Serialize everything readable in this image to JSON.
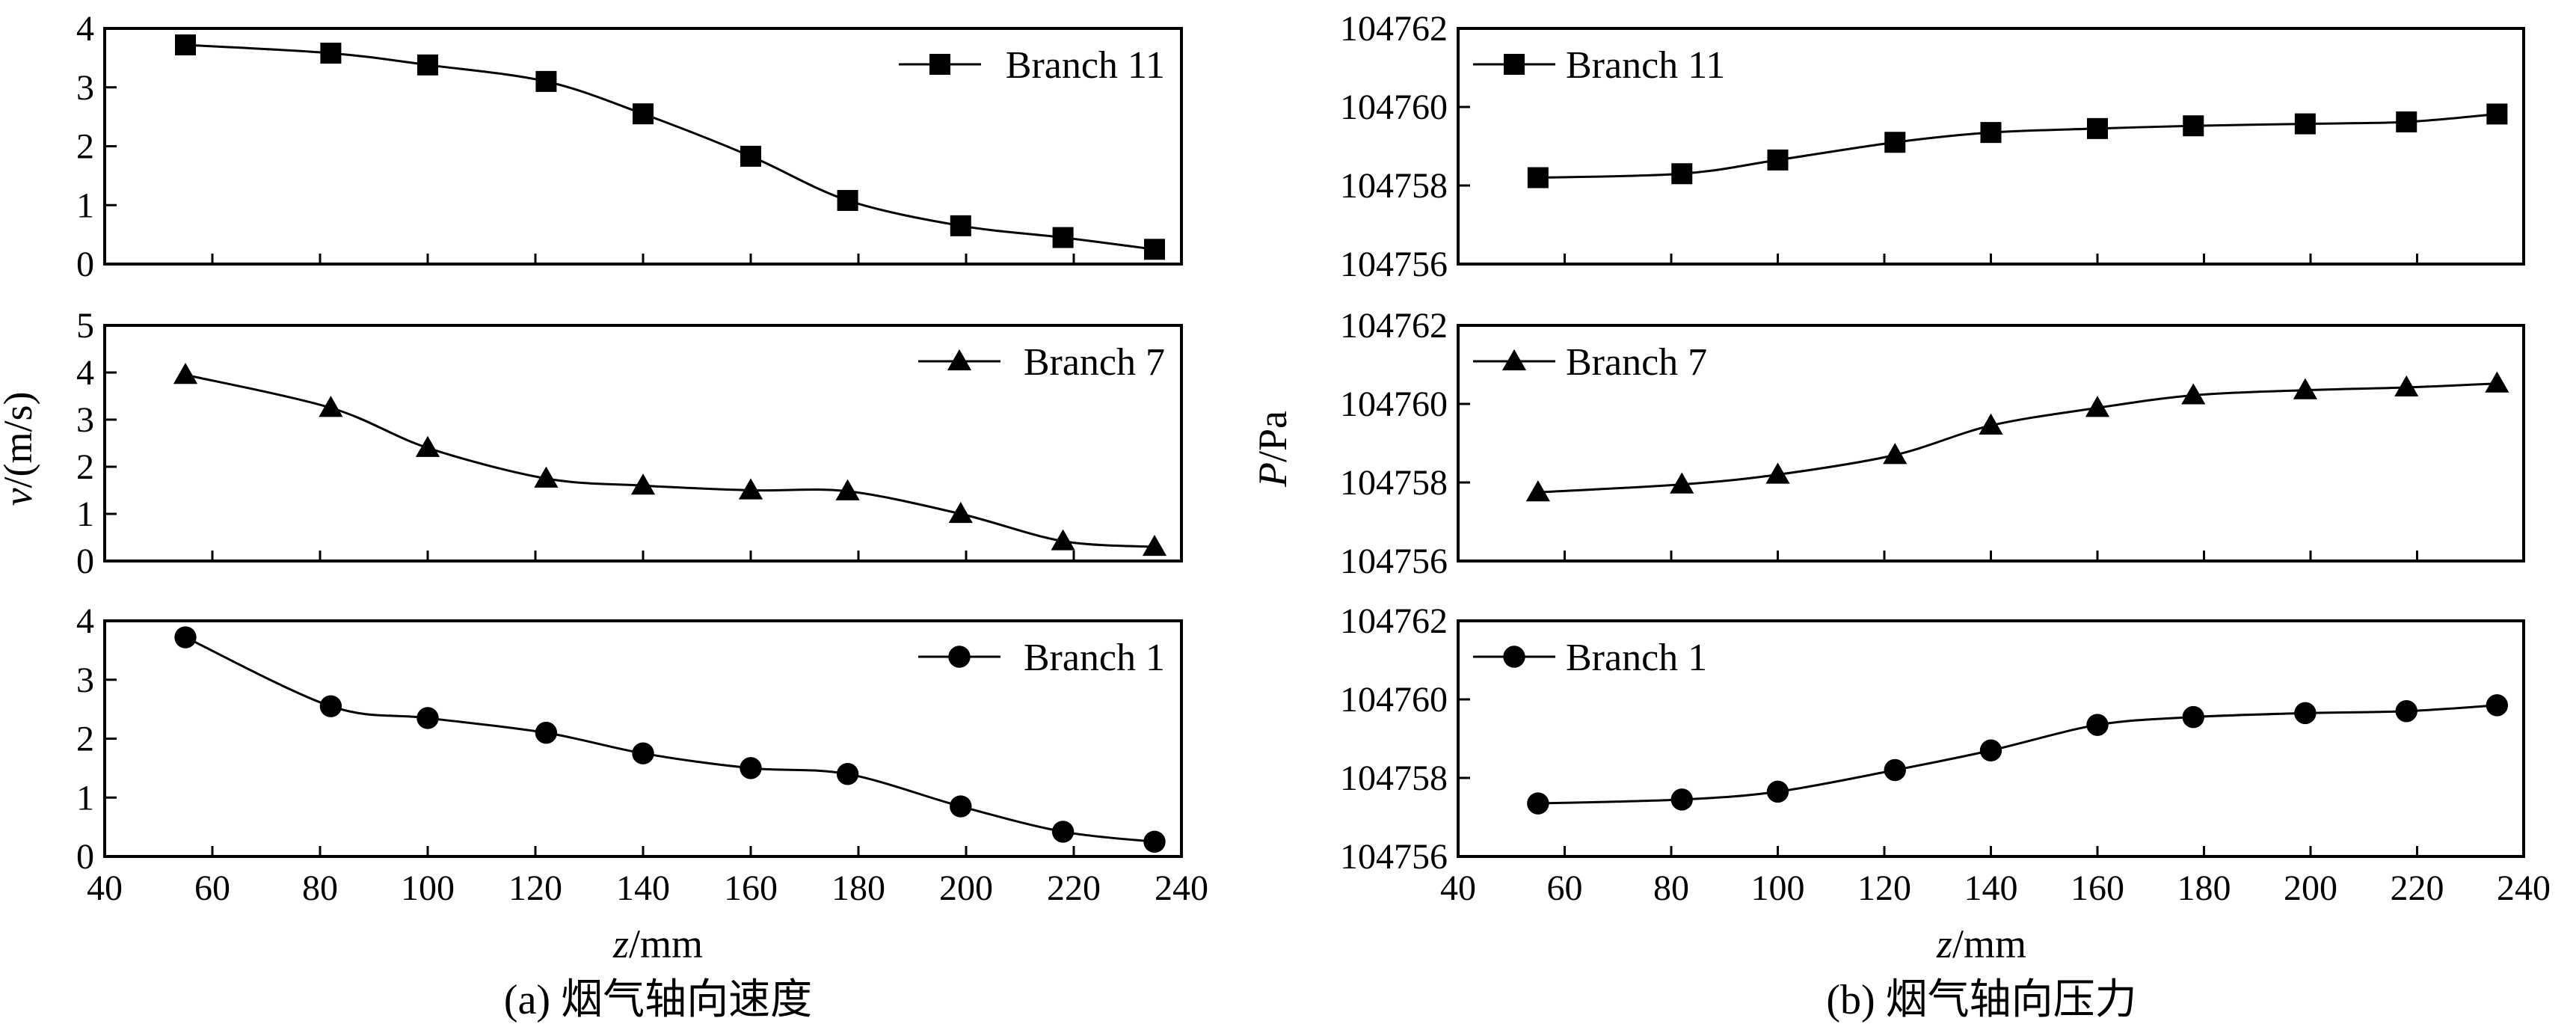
{
  "colors": {
    "line": "#000000",
    "marker": "#000000",
    "background": "#ffffff"
  },
  "panel_a": {
    "caption": "(a) 烟气轴向速度",
    "xlabel_italic": "z",
    "xlabel_unit": "/mm",
    "ylabel_italic": "v",
    "ylabel_unit": "/(m/s)"
  },
  "panel_b": {
    "caption": "(b) 烟气轴向压力",
    "xlabel_italic": "z",
    "xlabel_unit": "/mm",
    "ylabel_italic": "P",
    "ylabel_unit": "/Pa"
  },
  "chart_data": [
    {
      "type": "line",
      "panel": "a-top",
      "xlim": [
        40,
        240
      ],
      "ylim": [
        0,
        4
      ],
      "xticks": [
        40,
        60,
        80,
        100,
        120,
        140,
        160,
        180,
        200,
        220,
        240
      ],
      "yticks": [
        0,
        1,
        2,
        3,
        4
      ],
      "show_x_tick_labels": false,
      "legend_position": "top-right",
      "series": [
        {
          "name": "Branch 11",
          "marker": "square",
          "x": [
            55,
            82,
            100,
            122,
            140,
            160,
            178,
            199,
            218,
            235
          ],
          "y": [
            3.72,
            3.58,
            3.38,
            3.1,
            2.55,
            1.83,
            1.08,
            0.65,
            0.45,
            0.25
          ]
        }
      ]
    },
    {
      "type": "line",
      "panel": "a-middle",
      "xlim": [
        40,
        240
      ],
      "ylim": [
        0,
        5
      ],
      "xticks": [
        40,
        60,
        80,
        100,
        120,
        140,
        160,
        180,
        200,
        220,
        240
      ],
      "yticks": [
        0,
        1,
        2,
        3,
        4,
        5
      ],
      "show_x_tick_labels": false,
      "legend_position": "top-right",
      "series": [
        {
          "name": "Branch 7",
          "marker": "triangle",
          "x": [
            55,
            82,
            100,
            122,
            140,
            160,
            178,
            199,
            218,
            235
          ],
          "y": [
            3.95,
            3.25,
            2.4,
            1.75,
            1.6,
            1.5,
            1.48,
            1.0,
            0.42,
            0.3
          ]
        }
      ]
    },
    {
      "type": "line",
      "panel": "a-bottom",
      "xlim": [
        40,
        240
      ],
      "ylim": [
        0,
        4
      ],
      "xticks": [
        40,
        60,
        80,
        100,
        120,
        140,
        160,
        180,
        200,
        220,
        240
      ],
      "yticks": [
        0,
        1,
        2,
        3,
        4
      ],
      "show_x_tick_labels": true,
      "legend_position": "top-right",
      "series": [
        {
          "name": "Branch 1",
          "marker": "circle",
          "x": [
            55,
            82,
            100,
            122,
            140,
            160,
            178,
            199,
            218,
            235
          ],
          "y": [
            3.72,
            2.55,
            2.35,
            2.1,
            1.75,
            1.5,
            1.4,
            0.85,
            0.42,
            0.25
          ]
        }
      ]
    },
    {
      "type": "line",
      "panel": "b-top",
      "xlim": [
        40,
        240
      ],
      "ylim": [
        104756,
        104762
      ],
      "xticks": [
        40,
        60,
        80,
        100,
        120,
        140,
        160,
        180,
        200,
        220,
        240
      ],
      "yticks": [
        104756,
        104758,
        104760,
        104762
      ],
      "show_x_tick_labels": false,
      "legend_position": "top-left",
      "series": [
        {
          "name": "Branch 11",
          "marker": "square",
          "x": [
            55,
            82,
            100,
            122,
            140,
            160,
            178,
            199,
            218,
            235
          ],
          "y": [
            104758.2,
            104758.3,
            104758.65,
            104759.1,
            104759.35,
            104759.45,
            104759.52,
            104759.57,
            104759.62,
            104759.82
          ]
        }
      ]
    },
    {
      "type": "line",
      "panel": "b-middle",
      "xlim": [
        40,
        240
      ],
      "ylim": [
        104756,
        104762
      ],
      "xticks": [
        40,
        60,
        80,
        100,
        120,
        140,
        160,
        180,
        200,
        220,
        240
      ],
      "yticks": [
        104756,
        104758,
        104760,
        104762
      ],
      "show_x_tick_labels": false,
      "legend_position": "top-left",
      "series": [
        {
          "name": "Branch 7",
          "marker": "triangle",
          "x": [
            55,
            82,
            100,
            122,
            140,
            160,
            178,
            199,
            218,
            235
          ],
          "y": [
            104757.75,
            104757.95,
            104758.2,
            104758.7,
            104759.45,
            104759.9,
            104760.22,
            104760.35,
            104760.42,
            104760.52
          ]
        }
      ]
    },
    {
      "type": "line",
      "panel": "b-bottom",
      "xlim": [
        40,
        240
      ],
      "ylim": [
        104756,
        104762
      ],
      "xticks": [
        40,
        60,
        80,
        100,
        120,
        140,
        160,
        180,
        200,
        220,
        240
      ],
      "yticks": [
        104756,
        104758,
        104760,
        104762
      ],
      "show_x_tick_labels": true,
      "legend_position": "top-left",
      "series": [
        {
          "name": "Branch 1",
          "marker": "circle",
          "x": [
            55,
            82,
            100,
            122,
            140,
            160,
            178,
            199,
            218,
            235
          ],
          "y": [
            104757.35,
            104757.45,
            104757.65,
            104758.2,
            104758.7,
            104759.35,
            104759.55,
            104759.65,
            104759.7,
            104759.85
          ]
        }
      ]
    }
  ]
}
